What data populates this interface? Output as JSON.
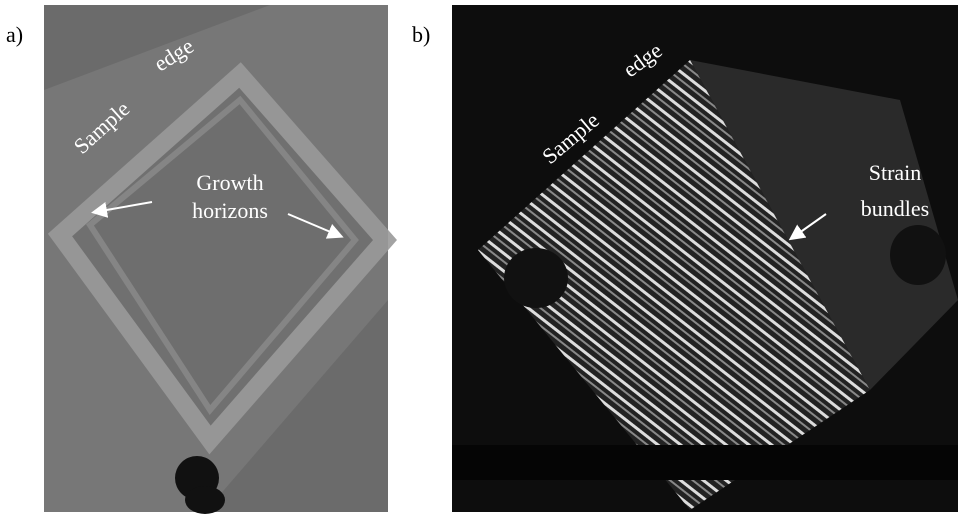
{
  "panels": [
    {
      "label": "a)",
      "annotations": {
        "sample": "Sample",
        "edge": "edge",
        "arrow_label": [
          "Growth",
          "horizons"
        ]
      }
    },
    {
      "label": "b)",
      "annotations": {
        "sample": "Sample",
        "edge": "edge",
        "arrow_label": [
          "Strain",
          "bundles"
        ]
      }
    }
  ]
}
